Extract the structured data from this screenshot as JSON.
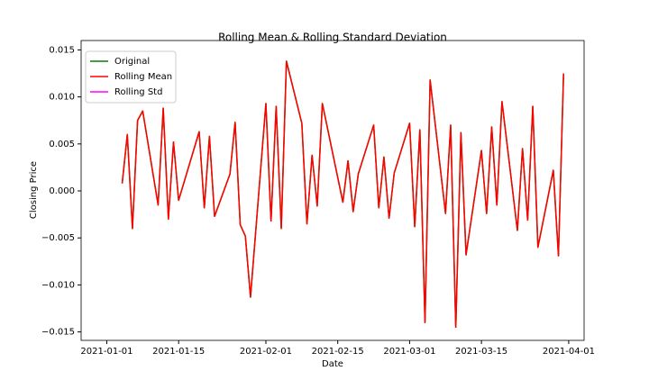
{
  "chart_data": {
    "type": "line",
    "title": "Rolling Mean & Rolling Standard Deviation",
    "xlabel": "Date",
    "ylabel": "Closing Price",
    "x": [
      "2021-01-04",
      "2021-01-05",
      "2021-01-06",
      "2021-01-07",
      "2021-01-08",
      "2021-01-11",
      "2021-01-12",
      "2021-01-13",
      "2021-01-14",
      "2021-01-15",
      "2021-01-19",
      "2021-01-20",
      "2021-01-21",
      "2021-01-22",
      "2021-01-25",
      "2021-01-26",
      "2021-01-27",
      "2021-01-28",
      "2021-01-29",
      "2021-02-01",
      "2021-02-02",
      "2021-02-03",
      "2021-02-04",
      "2021-02-05",
      "2021-02-08",
      "2021-02-09",
      "2021-02-10",
      "2021-02-11",
      "2021-02-12",
      "2021-02-16",
      "2021-02-17",
      "2021-02-18",
      "2021-02-19",
      "2021-02-22",
      "2021-02-23",
      "2021-02-24",
      "2021-02-25",
      "2021-02-26",
      "2021-03-01",
      "2021-03-02",
      "2021-03-03",
      "2021-03-04",
      "2021-03-05",
      "2021-03-08",
      "2021-03-09",
      "2021-03-10",
      "2021-03-11",
      "2021-03-12",
      "2021-03-15",
      "2021-03-16",
      "2021-03-17",
      "2021-03-18",
      "2021-03-19",
      "2021-03-22",
      "2021-03-23",
      "2021-03-24",
      "2021-03-25",
      "2021-03-26",
      "2021-03-29",
      "2021-03-30",
      "2021-03-31"
    ],
    "series": [
      {
        "name": "Original",
        "color": "#008000",
        "values": [
          0.0008,
          0.006,
          -0.004,
          0.0075,
          0.0085,
          -0.0015,
          0.0088,
          -0.003,
          0.0052,
          -0.001,
          0.0063,
          -0.0018,
          0.0058,
          -0.0027,
          0.0018,
          0.0073,
          -0.0036,
          -0.0048,
          -0.0113,
          0.0093,
          -0.0032,
          0.009,
          -0.004,
          0.0138,
          0.0072,
          -0.0035,
          0.0038,
          -0.0016,
          0.0093,
          -0.0012,
          0.0032,
          -0.0022,
          0.0018,
          0.007,
          -0.0018,
          0.0036,
          -0.0029,
          0.0019,
          0.0072,
          -0.0038,
          0.0065,
          -0.014,
          0.0118,
          -0.0024,
          0.007,
          -0.0145,
          0.0062,
          -0.0068,
          0.0043,
          -0.0024,
          0.0068,
          -0.0015,
          0.0095,
          -0.0042,
          0.0045,
          -0.0031,
          0.009,
          -0.006,
          0.0022,
          -0.0069,
          0.0125
        ]
      },
      {
        "name": "Rolling Mean",
        "color": "#ff0000",
        "values": [
          0.0008,
          0.006,
          -0.004,
          0.0075,
          0.0085,
          -0.0015,
          0.0088,
          -0.003,
          0.0052,
          -0.001,
          0.0063,
          -0.0018,
          0.0058,
          -0.0027,
          0.0018,
          0.0073,
          -0.0036,
          -0.0048,
          -0.0113,
          0.0093,
          -0.0032,
          0.009,
          -0.004,
          0.0138,
          0.0072,
          -0.0035,
          0.0038,
          -0.0016,
          0.0093,
          -0.0012,
          0.0032,
          -0.0022,
          0.0018,
          0.007,
          -0.0018,
          0.0036,
          -0.0029,
          0.0019,
          0.0072,
          -0.0038,
          0.0065,
          -0.014,
          0.0118,
          -0.0024,
          0.007,
          -0.0145,
          0.0062,
          -0.0068,
          0.0043,
          -0.0024,
          0.0068,
          -0.0015,
          0.0095,
          -0.0042,
          0.0045,
          -0.0031,
          0.009,
          -0.006,
          0.0022,
          -0.0069,
          0.0125
        ]
      },
      {
        "name": "Rolling Std",
        "color": "#ff00ff",
        "values": [
          null,
          null,
          null,
          null,
          null,
          null,
          null,
          null,
          null,
          null,
          null,
          null,
          null,
          null,
          null,
          null,
          null,
          null,
          null,
          null,
          null,
          null,
          null,
          null,
          null,
          null,
          null,
          null,
          null,
          null,
          null,
          null,
          null,
          null,
          null,
          null,
          null,
          null,
          null,
          null,
          null,
          null,
          null,
          null,
          null,
          null,
          null,
          null,
          null,
          null,
          null,
          null,
          null,
          null,
          null,
          null,
          null,
          null,
          null,
          null,
          null
        ]
      }
    ],
    "xlim": [
      "2020-12-27",
      "2021-04-04"
    ],
    "xticks": [
      "2021-01-01",
      "2021-01-15",
      "2021-02-01",
      "2021-02-15",
      "2021-03-01",
      "2021-03-15",
      "2021-04-01"
    ],
    "ylim": [
      -0.0159,
      0.016
    ],
    "yticks": [
      {
        "value": -0.015,
        "label": "−0.015"
      },
      {
        "value": -0.01,
        "label": "−0.010"
      },
      {
        "value": -0.005,
        "label": "−0.005"
      },
      {
        "value": 0,
        "label": "0.000"
      },
      0.005,
      {
        "value": 0.01,
        "label": "0.010"
      },
      0.015
    ],
    "legend": "upper left",
    "grid": false
  }
}
